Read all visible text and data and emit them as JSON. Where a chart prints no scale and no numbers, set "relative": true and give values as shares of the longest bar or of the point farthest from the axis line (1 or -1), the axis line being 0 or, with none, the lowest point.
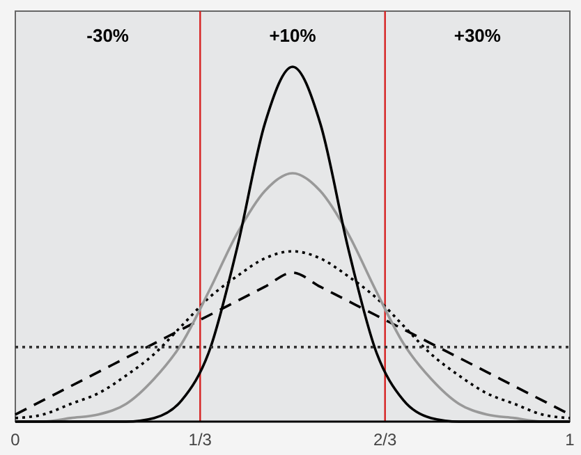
{
  "chart_data": {
    "type": "line",
    "relative": true,
    "x": [
      0,
      0.05,
      0.1,
      0.15,
      0.2,
      0.25,
      0.3,
      0.35,
      0.4,
      0.45,
      0.5,
      0.55,
      0.6,
      0.65,
      0.7,
      0.75,
      0.8,
      0.85,
      0.9,
      0.95,
      1
    ],
    "xlim": [
      0,
      1
    ],
    "xticks": [
      0,
      {
        "value": 0.3333,
        "label": "1/3"
      },
      {
        "value": 0.6667,
        "label": "2/3"
      },
      1
    ],
    "grid": false,
    "series": [
      {
        "color": "#000000",
        "line_style": "dashed",
        "values": [
          0.02,
          0.06,
          0.1,
          0.14,
          0.18,
          0.22,
          0.26,
          0.3,
          0.34,
          0.38,
          0.42,
          0.38,
          0.34,
          0.3,
          0.26,
          0.22,
          0.18,
          0.14,
          0.1,
          0.06,
          0.02
        ]
      },
      {
        "color": "#000000",
        "line_style": "dotted",
        "values": [
          0.01,
          0.02,
          0.05,
          0.08,
          0.13,
          0.19,
          0.27,
          0.35,
          0.41,
          0.46,
          0.48,
          0.46,
          0.41,
          0.35,
          0.27,
          0.19,
          0.13,
          0.08,
          0.05,
          0.02,
          0.01
        ]
      },
      {
        "color": "#999999",
        "line_style": "solid",
        "values": [
          0,
          0,
          0.01,
          0.02,
          0.05,
          0.12,
          0.22,
          0.37,
          0.53,
          0.65,
          0.7,
          0.65,
          0.53,
          0.37,
          0.22,
          0.12,
          0.05,
          0.02,
          0.01,
          0,
          0
        ]
      },
      {
        "color": "#000000",
        "line_style": "solid",
        "values": [
          0,
          0,
          0,
          0,
          0,
          0.01,
          0.06,
          0.2,
          0.49,
          0.84,
          1,
          0.84,
          0.49,
          0.2,
          0.06,
          0.01,
          0,
          0,
          0,
          0,
          0
        ]
      },
      {
        "color": "#333333",
        "line_style": "dotted",
        "x": [
          0,
          1
        ],
        "values": [
          0.21,
          0.21
        ]
      }
    ],
    "bands": [
      {
        "axis": "x",
        "from": 0,
        "to": 0.3333,
        "label": "-30%",
        "color": "#e6e7e8"
      },
      {
        "axis": "x",
        "from": 0.3333,
        "to": 0.6667,
        "label": "+10%",
        "color": "#e6e7e8"
      },
      {
        "axis": "x",
        "from": 0.6667,
        "to": 1,
        "label": "+30%",
        "color": "#e6e7e8"
      }
    ],
    "ref_lines": [
      {
        "axis": "x",
        "value": 0.3333,
        "color": "#d62020"
      },
      {
        "axis": "x",
        "value": 0.6667,
        "color": "#d62020"
      }
    ]
  }
}
